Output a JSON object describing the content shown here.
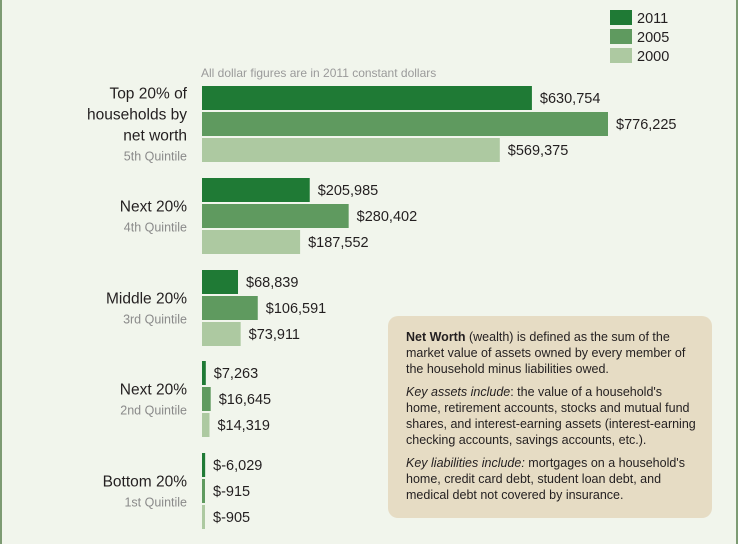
{
  "chart_data": {
    "type": "bar",
    "orientation": "horizontal",
    "subtitle": "All dollar figures are in 2011 constant dollars",
    "categories": [
      {
        "label_lines": [
          "Top 20% of",
          "households by",
          "net worth"
        ],
        "sublabel": "5th Quintile"
      },
      {
        "label_lines": [
          "Next 20%"
        ],
        "sublabel": "4th Quintile"
      },
      {
        "label_lines": [
          "Middle 20%"
        ],
        "sublabel": "3rd Quintile"
      },
      {
        "label_lines": [
          "Next 20%"
        ],
        "sublabel": "2nd Quintile"
      },
      {
        "label_lines": [
          "Bottom 20%"
        ],
        "sublabel": "1st Quintile"
      }
    ],
    "series": [
      {
        "name": "2011",
        "color": "#1f7a35",
        "values": [
          630754,
          205985,
          68839,
          7263,
          -6029
        ],
        "labels": [
          "$630,754",
          "$205,985",
          "$68,839",
          "$7,263",
          "$-6,029"
        ]
      },
      {
        "name": "2005",
        "color": "#5f9a5f",
        "values": [
          776225,
          280402,
          106591,
          16645,
          -915
        ],
        "labels": [
          "$776,225",
          "$280,402",
          "$106,591",
          "$16,645",
          "$-915"
        ]
      },
      {
        "name": "2000",
        "color": "#adc9a1",
        "values": [
          569375,
          187552,
          73911,
          14319,
          -905
        ],
        "labels": [
          "$569,375",
          "$187,552",
          "$73,911",
          "$14,319",
          "$-905"
        ]
      }
    ],
    "legend_position": "top-right",
    "xlim": [
      0,
      800000
    ]
  },
  "note": {
    "p1_bold": "Net Worth",
    "p1_rest": " (wealth) is defined as the sum of the market value of assets owned by every member of the household minus liabilities owed.",
    "p2_italic": "Key assets include",
    "p2_rest": ": the value of a household's home, retirement accounts, stocks and mutual fund shares, and interest-earning assets (interest-earning checking accounts, savings accounts, etc.).",
    "p3_italic": "Key liabilities include:",
    "p3_rest": " mortgages on a household's home, credit card debt, student loan debt, and medical debt not covered by insurance."
  }
}
